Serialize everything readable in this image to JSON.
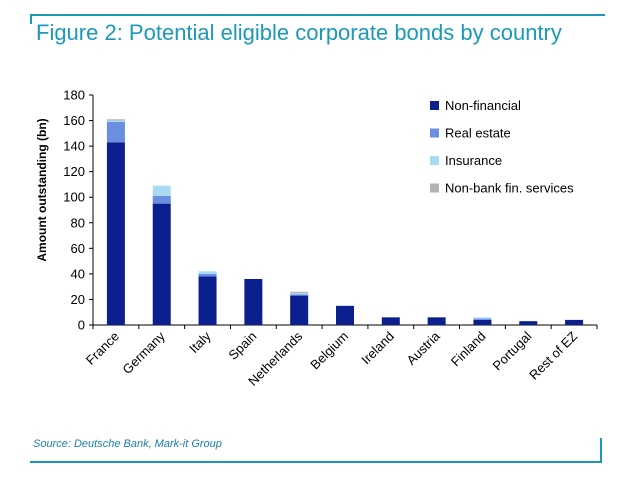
{
  "title": "Figure 2: Potential eligible corporate bonds by country",
  "source": "Source: Deutsche Bank, Mark-it Group",
  "chart_data": {
    "type": "bar",
    "stacked": true,
    "categories": [
      "France",
      "Germany",
      "Italy",
      "Spain",
      "Netherlands",
      "Belgium",
      "Ireland",
      "Austria",
      "Finland",
      "Portugal",
      "Rest of EZ"
    ],
    "series": [
      {
        "name": "Non-financial",
        "color": "#0c1f8f",
        "values": [
          143,
          95,
          38,
          36,
          23,
          15,
          6,
          6,
          4,
          3,
          4
        ]
      },
      {
        "name": "Real estate",
        "color": "#6b8fe0",
        "values": [
          16,
          6,
          2,
          0,
          1,
          0,
          0,
          0,
          1,
          0,
          0
        ]
      },
      {
        "name": "Insurance",
        "color": "#a8daf2",
        "values": [
          1,
          8,
          2,
          0,
          1,
          0,
          0,
          0,
          1,
          0,
          0
        ]
      },
      {
        "name": "Non-bank fin. services",
        "color": "#b3b3b3",
        "values": [
          1,
          0,
          0,
          0,
          1,
          0,
          0,
          0,
          0,
          0,
          0
        ]
      }
    ],
    "ylabel": "Amount outstanding (bn)",
    "xlabel": "",
    "ylim": [
      0,
      180
    ],
    "yticks": [
      0,
      20,
      40,
      60,
      80,
      100,
      120,
      140,
      160,
      180
    ],
    "grid": false,
    "legend": "top-right"
  }
}
